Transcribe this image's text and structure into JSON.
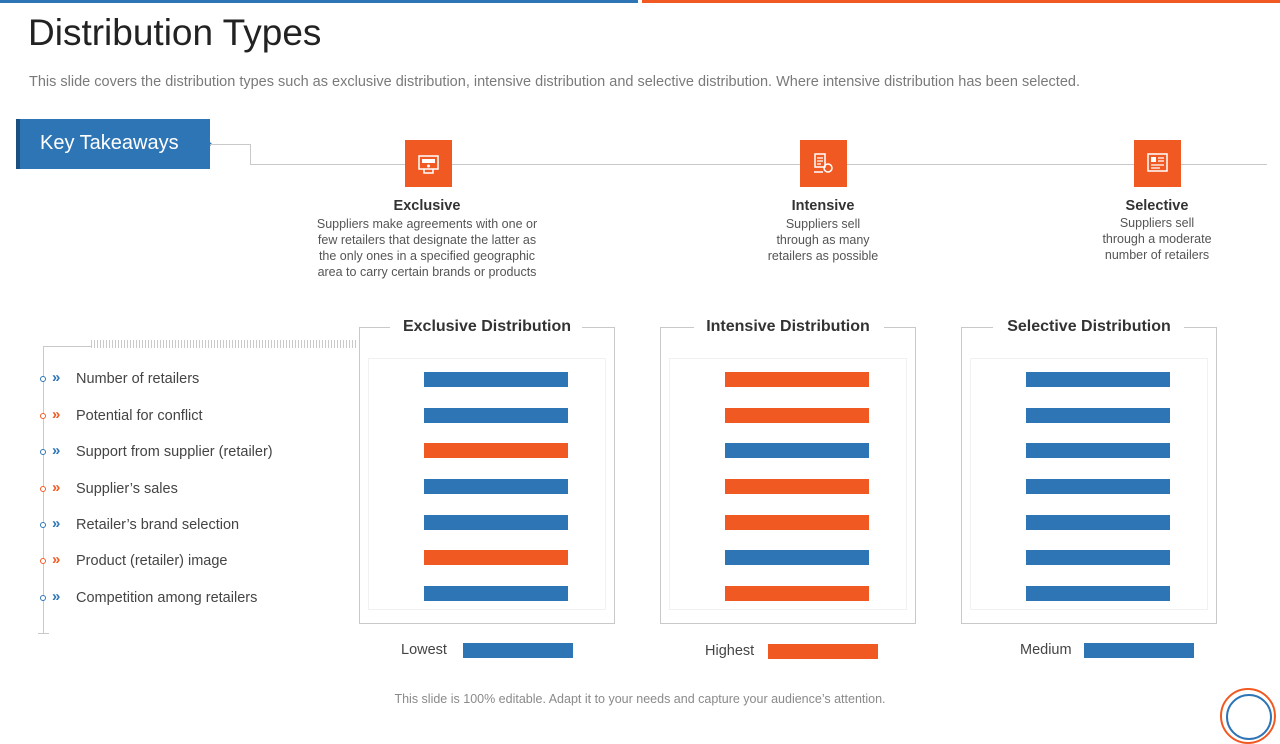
{
  "title": "Distribution Types",
  "subtitle": "This slide covers the distribution types such as exclusive distribution, intensive distribution and selective distribution. Where intensive distribution has been selected.",
  "key_takeaways": "Key Takeaways",
  "colors": {
    "blue": "#2E75B6",
    "orange": "#F05A22"
  },
  "types": [
    {
      "title": "Exclusive",
      "icon": "store-icon",
      "desc": [
        "Suppliers make agreements with one or",
        "few retailers that designate the latter as",
        "the only ones in a specified geographic",
        "area to carry certain brands or products"
      ]
    },
    {
      "title": "Intensive",
      "icon": "retail-network-icon",
      "desc": [
        "Suppliers sell",
        "through as many",
        "retailers as possible"
      ]
    },
    {
      "title": "Selective",
      "icon": "selection-board-icon",
      "desc": [
        "Suppliers sell",
        "through a moderate",
        "number of retailers"
      ]
    }
  ],
  "factors": [
    {
      "label": "Number of retailers",
      "color": "#2E75B6"
    },
    {
      "label": "Potential for conflict",
      "color": "#F05A22"
    },
    {
      "label": "Support from supplier (retailer)",
      "color": "#2E75B6"
    },
    {
      "label": "Supplier’s sales",
      "color": "#F05A22"
    },
    {
      "label": "Retailer’s brand selection",
      "color": "#2E75B6"
    },
    {
      "label": "Product (retailer) image",
      "color": "#F05A22"
    },
    {
      "label": "Competition among retailers",
      "color": "#2E75B6"
    }
  ],
  "panels": [
    {
      "title": "Exclusive Distribution",
      "levels": [
        "Lowest",
        "Lowest",
        "Highest",
        "Lowest",
        "Lowest",
        "Highest",
        "Lowest"
      ]
    },
    {
      "title": "Intensive Distribution",
      "levels": [
        "Highest",
        "Highest",
        "Lowest",
        "Highest",
        "Highest",
        "Lowest",
        "Highest"
      ]
    },
    {
      "title": "Selective Distribution",
      "levels": [
        "Medium",
        "Medium",
        "Medium",
        "Medium",
        "Medium",
        "Medium",
        "Medium"
      ]
    }
  ],
  "legend": [
    {
      "label": "Lowest",
      "color": "#2E75B6"
    },
    {
      "label": "Highest",
      "color": "#F05A22"
    },
    {
      "label": "Medium",
      "color": "#2E75B6"
    }
  ],
  "footer": "This slide is 100% editable. Adapt it to your needs and capture your audience’s attention."
}
